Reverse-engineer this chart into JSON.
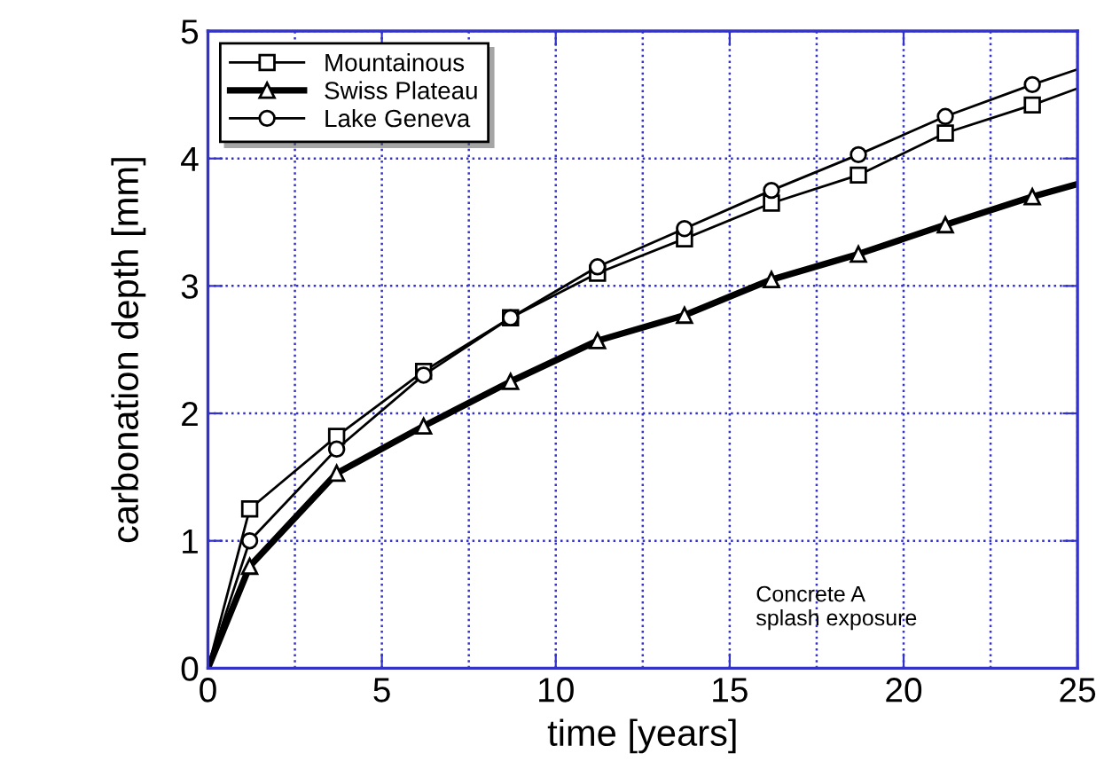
{
  "chart_data": {
    "type": "line",
    "xlabel": "time [years]",
    "ylabel": "carbonation depth [mm]",
    "x": [
      0,
      1.2,
      3.7,
      6.2,
      8.7,
      11.2,
      13.7,
      16.2,
      18.7,
      21.2,
      23.7,
      25
    ],
    "series": [
      {
        "name": "Mountainous",
        "color": "#000000",
        "marker": "square",
        "values": [
          0,
          1.25,
          1.82,
          2.33,
          2.75,
          3.1,
          3.37,
          3.65,
          3.87,
          4.2,
          4.42,
          4.55
        ]
      },
      {
        "name": "Swiss Plateau",
        "color": "#000000",
        "marker": "triangle",
        "values": [
          0,
          0.8,
          1.53,
          1.9,
          2.25,
          2.57,
          2.77,
          3.05,
          3.25,
          3.48,
          3.7,
          3.8
        ]
      },
      {
        "name": "Lake Geneva",
        "color": "#000000",
        "marker": "circle",
        "values": [
          0,
          1.0,
          1.72,
          2.3,
          2.75,
          3.15,
          3.45,
          3.75,
          4.03,
          4.33,
          4.58,
          4.7
        ]
      }
    ],
    "xlim": [
      0,
      25
    ],
    "ylim": [
      0,
      5
    ],
    "xticks": [
      0,
      5,
      10,
      15,
      20,
      25
    ],
    "yticks": [
      0,
      1,
      2,
      3,
      4,
      5
    ],
    "grid": true,
    "legend": "top left",
    "line_style": "solid",
    "annotations": [
      "Concrete A\nsplash exposure"
    ]
  }
}
